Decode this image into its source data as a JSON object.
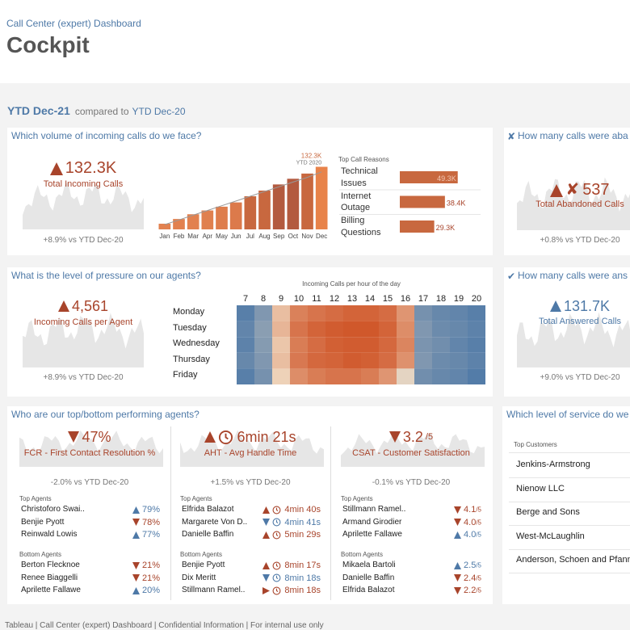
{
  "tone_colors": {
    "good": "#4e79a7",
    "bad": "#a8442b"
  },
  "header": {
    "subtitle": "Call Center (expert) Dashboard",
    "title": "Cockpit"
  },
  "period": {
    "label": "YTD Dec-21",
    "compare_text": "compared to",
    "compare": "YTD Dec-20"
  },
  "volume": {
    "question": "Which volume of incoming calls do we face?",
    "kpi": {
      "value": "132.3K",
      "trend": "up",
      "tone": "bad",
      "label": "Total Incoming Calls",
      "delta": "+8.9% vs YTD Dec-20"
    },
    "monthly": {
      "categories": [
        "Jan",
        "Feb",
        "Mar",
        "Apr",
        "May",
        "Jun",
        "Jul",
        "Aug",
        "Sep",
        "Oct",
        "Nov",
        "Dec"
      ],
      "values": [
        12,
        22,
        32,
        40,
        48,
        57,
        70,
        82,
        95,
        107,
        118,
        132.3
      ],
      "colors": [
        "#e2814f",
        "#e2814f",
        "#e2814f",
        "#e0804e",
        "#de7d4c",
        "#dc7a4b",
        "#c8683f",
        "#c8683f",
        "#b35a3f",
        "#b35a3f",
        "#c8683f",
        "#e8834a"
      ],
      "ref_values": [
        10,
        20,
        30,
        40,
        50,
        60,
        70,
        80,
        90,
        100,
        110,
        121.5
      ],
      "total_label": "132.3K",
      "ref_label": "YTD 2020",
      "ylim": [
        0,
        140
      ]
    },
    "reasons": {
      "title": "Top Call Reasons",
      "xlim": [
        0,
        55
      ],
      "color": "#c8683f",
      "items": [
        {
          "name": [
            "Technical",
            "Issues"
          ],
          "value": 49.3,
          "label": "49.3K"
        },
        {
          "name": [
            "Internet",
            "Outage"
          ],
          "value": 38.4,
          "label": "38.4K"
        },
        {
          "name": [
            "Billing",
            "Questions"
          ],
          "value": 29.3,
          "label": "29.3K"
        }
      ]
    }
  },
  "abandoned": {
    "question": "How many calls were aba",
    "kpi": {
      "value": "537",
      "trend": "up",
      "tone": "bad",
      "label": "Total Abandoned Calls",
      "delta": "+0.8% vs YTD Dec-20"
    }
  },
  "pressure": {
    "question": "What is the level of pressure on our agents?",
    "kpi": {
      "value": "4,561",
      "trend": "up",
      "tone": "bad",
      "label": "Incoming Calls per Agent",
      "delta": "+8.9% vs YTD Dec-20"
    },
    "heatmap": {
      "title": "Incoming Calls per hour of the day",
      "hours": [
        7,
        8,
        9,
        10,
        11,
        12,
        13,
        14,
        15,
        16,
        17,
        18,
        19,
        20
      ],
      "days": [
        "Monday",
        "Tuesday",
        "Wednesday",
        "Thursday",
        "Friday"
      ],
      "values": [
        [
          22,
          30,
          60,
          75,
          78,
          80,
          82,
          82,
          80,
          70,
          28,
          25,
          24,
          22
        ],
        [
          24,
          32,
          62,
          78,
          82,
          84,
          85,
          85,
          82,
          72,
          30,
          26,
          25,
          23
        ],
        [
          23,
          31,
          58,
          76,
          80,
          83,
          84,
          84,
          81,
          74,
          29,
          27,
          24,
          22
        ],
        [
          25,
          30,
          60,
          77,
          81,
          82,
          84,
          83,
          80,
          71,
          30,
          26,
          25,
          23
        ],
        [
          22,
          28,
          55,
          72,
          76,
          78,
          78,
          76,
          70,
          50,
          27,
          25,
          24,
          21
        ]
      ],
      "range": [
        20,
        85
      ],
      "color_low": "#4e79a7",
      "color_mid": "#f1dcc4",
      "color_high": "#d0582b"
    }
  },
  "answered": {
    "question": "How many calls were ans",
    "kpi": {
      "value": "131.7K",
      "trend": "up",
      "tone": "good",
      "label": "Total Answered Calls",
      "delta": "+9.0% vs YTD Dec-20"
    }
  },
  "agents": {
    "question": "Who are our top/bottom performing agents?",
    "panels": [
      {
        "kpi": {
          "value": "47%",
          "trend": "down",
          "tone": "bad",
          "label": "FCR - First Contact Resolution %",
          "delta": "-2.0% vs YTD Dec-20"
        },
        "clock": false,
        "top_title": "Top Agents",
        "top": [
          {
            "name": "Christoforo Swai..",
            "value": "79%",
            "trend": "up",
            "tone": "good"
          },
          {
            "name": "Benjie Pyott",
            "value": "78%",
            "trend": "down",
            "tone": "bad"
          },
          {
            "name": "Reinwald Lowis",
            "value": "77%",
            "trend": "up",
            "tone": "good"
          }
        ],
        "bottom_title": "Bottom Agents",
        "bottom": [
          {
            "name": "Berton Flecknoe",
            "value": "21%",
            "trend": "down",
            "tone": "bad"
          },
          {
            "name": "Renee Biaggelli",
            "value": "21%",
            "trend": "down",
            "tone": "bad"
          },
          {
            "name": "Aprilette Fallawe",
            "value": "20%",
            "trend": "up",
            "tone": "good"
          }
        ]
      },
      {
        "kpi": {
          "value": "6min 21s",
          "trend": "up",
          "tone": "bad",
          "label": "AHT - Avg Handle Time",
          "delta": "+1.5% vs YTD Dec-20"
        },
        "clock": true,
        "top_title": "Top Agents",
        "top": [
          {
            "name": "Elfrida Balazot",
            "value": "4min 40s",
            "trend": "up",
            "tone": "bad"
          },
          {
            "name": "Margarete Von D..",
            "value": "4min 41s",
            "trend": "down",
            "tone": "good"
          },
          {
            "name": "Danielle Baffin",
            "value": "5min 29s",
            "trend": "up",
            "tone": "bad"
          }
        ],
        "bottom_title": "Bottom Agents",
        "bottom": [
          {
            "name": "Benjie Pyott",
            "value": "8min 17s",
            "trend": "up",
            "tone": "bad"
          },
          {
            "name": "Dix Meritt",
            "value": "8min 18s",
            "trend": "down",
            "tone": "good"
          },
          {
            "name": "Stillmann Ramel..",
            "value": "8min 18s",
            "trend": "flat",
            "tone": "bad"
          }
        ]
      },
      {
        "kpi": {
          "value": "3.2",
          "unit": "/5",
          "trend": "down",
          "tone": "bad",
          "label": "CSAT - Customer Satisfaction",
          "delta": "-0.1% vs YTD Dec-20"
        },
        "clock": false,
        "top_title": "Top Agents",
        "top": [
          {
            "name": "Stillmann Ramel..",
            "value": "4.1",
            "unit": "/5",
            "trend": "down",
            "tone": "bad"
          },
          {
            "name": "Armand Girodier",
            "value": "4.0",
            "unit": "/5",
            "trend": "down",
            "tone": "bad"
          },
          {
            "name": "Aprilette Fallawe",
            "value": "4.0",
            "unit": "/5",
            "trend": "up",
            "tone": "good"
          }
        ],
        "bottom_title": "Bottom Agents",
        "bottom": [
          {
            "name": "Mikaela Bartoli",
            "value": "2.5",
            "unit": "/5",
            "trend": "up",
            "tone": "good"
          },
          {
            "name": "Danielle Baffin",
            "value": "2.4",
            "unit": "/5",
            "trend": "down",
            "tone": "bad"
          },
          {
            "name": "Elfrida Balazot",
            "value": "2.2",
            "unit": "/5",
            "trend": "down",
            "tone": "bad"
          }
        ]
      }
    ]
  },
  "service": {
    "question": "Which level of service do we",
    "list_title": "Top Customers",
    "customers": [
      "Jenkins-Armstrong",
      "Nienow LLC",
      "Berge and Sons",
      "West-McLaughlin",
      "Anderson, Schoen and Pfannerstill"
    ]
  },
  "footer": "Tableau | Call Center (expert) Dashboard | Confidential Information | For internal use only"
}
